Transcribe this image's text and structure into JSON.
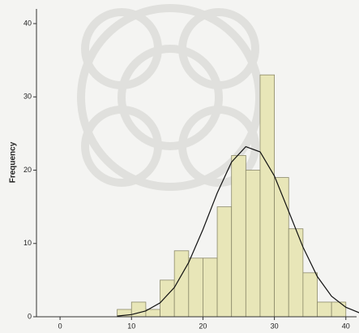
{
  "chart_data": {
    "type": "histogram",
    "y_label": "Frequency",
    "bins": [
      8,
      10,
      12,
      14,
      16,
      18,
      20,
      22,
      24,
      26,
      28,
      30,
      32,
      34,
      36,
      38,
      40
    ],
    "counts": [
      1,
      2,
      1,
      5,
      9,
      8,
      8,
      15,
      22,
      20,
      33,
      19,
      12,
      6,
      2,
      2
    ],
    "color": "#e8e6b8",
    "edge_color": "#8c8a6a",
    "curve": {
      "x": [
        8,
        10,
        12,
        14,
        16,
        18,
        20,
        22,
        24,
        26,
        28,
        30,
        32,
        34,
        36,
        38,
        40,
        42
      ],
      "y": [
        0.1,
        0.3,
        0.8,
        1.9,
        4.0,
        7.4,
        11.9,
        16.9,
        21.1,
        23.2,
        22.5,
        19.2,
        14.4,
        9.5,
        5.5,
        2.8,
        1.3,
        0.5
      ],
      "color": "#111111"
    },
    "xlim": [
      -3.3,
      41.5
    ],
    "xticks": [
      0,
      10,
      20,
      30,
      40
    ],
    "ylim": [
      0,
      42
    ],
    "yticks": [
      0,
      10,
      20,
      30,
      40
    ]
  }
}
